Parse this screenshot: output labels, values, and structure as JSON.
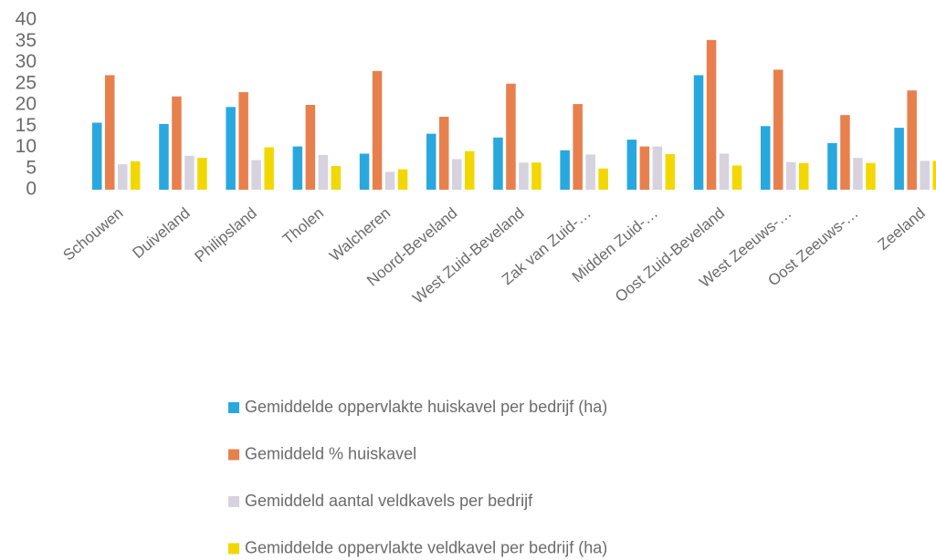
{
  "chart_data": {
    "type": "bar",
    "categories": [
      "Schouwen",
      "Duiveland",
      "Philipsland",
      "Tholen",
      "Walcheren",
      "Noord-Beveland",
      "West Zuid-Beveland",
      "Zak van Zuid-…",
      "Midden Zuid-…",
      "Oost Zuid-Beveland",
      "West Zeeuws-…",
      "Oost Zeeuws-…",
      "Zeeland"
    ],
    "series": [
      {
        "name": "Gemiddelde oppervlakte huiskavel per bedrijf (ha)",
        "color": "#29a8e0",
        "values": [
          15.8,
          15.5,
          19.5,
          10.2,
          8.5,
          13.2,
          12.3,
          9.3,
          11.8,
          27,
          15,
          11,
          14.6
        ]
      },
      {
        "name": "Gemiddeld % huiskavel",
        "color": "#e8804d",
        "values": [
          27,
          22,
          23,
          20,
          28,
          17.2,
          25,
          20.2,
          10.2,
          35.3,
          28.3,
          17.6,
          23.4
        ]
      },
      {
        "name": "Gemiddeld aantal veldkavels per bedrijf",
        "color": "#d6d2de",
        "values": [
          6,
          8,
          7,
          8.2,
          4.2,
          7.2,
          6.4,
          8.3,
          10.2,
          8.5,
          6.5,
          7.5,
          6.8
        ]
      },
      {
        "name": "Gemiddelde oppervlakte veldkavel per bedrijf (ha)",
        "color": "#f2d800",
        "values": [
          6.7,
          7.5,
          10,
          5.6,
          4.8,
          9.1,
          6.4,
          5,
          8.4,
          5.7,
          6.3,
          6.3,
          6.8
        ]
      }
    ],
    "ylim": [
      0,
      40
    ],
    "yticks": [
      0,
      5,
      10,
      15,
      20,
      25,
      30,
      35,
      40
    ],
    "grid": false,
    "legend": "bottom"
  }
}
